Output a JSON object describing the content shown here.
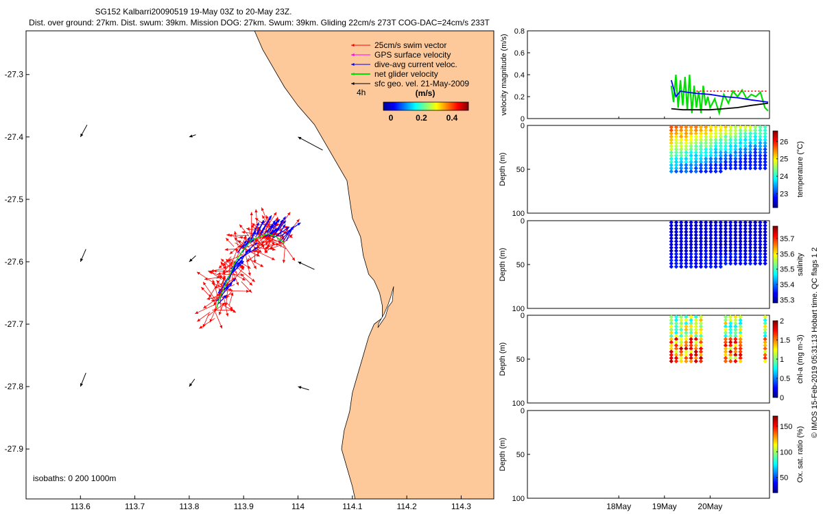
{
  "header": {
    "title_line1": "SG152 Kalbarri20090519 19-May 03Z to 20-May 23Z.",
    "title_line2": "Dist. over ground: 27km. Dist. swum: 39km. Mission DOG: 27km. Swum: 39km. Gliding 22cm/s 273T COG-DAC=24cm/s 233T"
  },
  "map": {
    "legend": [
      {
        "label": "25cm/s swim vector",
        "color": "#ff0000"
      },
      {
        "label": "GPS surface velocity",
        "color": "#ff00ff"
      },
      {
        "label": "dive-avg current veloc.",
        "color": "#0000ff"
      },
      {
        "label": "net glider velocity",
        "color": "#00e000"
      },
      {
        "label": "sfc geo. vel. 21-May-2009",
        "color": "#000000"
      }
    ],
    "legend_4h": "4h",
    "colorbar_title": "(m/s)",
    "colorbar_ticks": [
      "0",
      "0.2",
      "0.4"
    ],
    "isobaths_label": "isobaths: 0   200  1000m",
    "land_color": "#fdc99a"
  },
  "side_note": "© IMOS 15-Feb-2019 05:31:13 Hobart time. QC flags 1  2",
  "chart_data": [
    {
      "type": "scatter",
      "name": "track-map",
      "xlim": [
        113.5,
        114.36
      ],
      "ylim": [
        -27.98,
        -27.23
      ],
      "xticks": [
        "113.6",
        "113.7",
        "113.8",
        "113.9",
        "114",
        "114.1",
        "114.2",
        "114.3"
      ],
      "xtick_values": [
        113.6,
        113.7,
        113.8,
        113.9,
        114.0,
        114.1,
        114.2,
        114.3
      ],
      "yticks": [
        "-27.3",
        "-27.4",
        "-27.5",
        "-27.6",
        "-27.7",
        "-27.8",
        "-27.9"
      ],
      "ytick_values": [
        -27.3,
        -27.4,
        -27.5,
        -27.6,
        -27.7,
        -27.8,
        -27.9
      ],
      "coastline": [
        [
          113.92,
          -27.23
        ],
        [
          113.935,
          -27.26
        ],
        [
          113.955,
          -27.29
        ],
        [
          113.975,
          -27.32
        ],
        [
          114.0,
          -27.35
        ],
        [
          114.03,
          -27.38
        ],
        [
          114.05,
          -27.41
        ],
        [
          114.07,
          -27.44
        ],
        [
          114.09,
          -27.47
        ],
        [
          114.095,
          -27.5
        ],
        [
          114.1,
          -27.53
        ],
        [
          114.115,
          -27.56
        ],
        [
          114.12,
          -27.59
        ],
        [
          114.13,
          -27.62
        ],
        [
          114.14,
          -27.63
        ],
        [
          114.15,
          -27.65
        ],
        [
          114.155,
          -27.67
        ],
        [
          114.155,
          -27.69
        ],
        [
          114.14,
          -27.7
        ],
        [
          114.13,
          -27.72
        ],
        [
          114.12,
          -27.75
        ],
        [
          114.11,
          -27.78
        ],
        [
          114.1,
          -27.81
        ],
        [
          114.095,
          -27.84
        ],
        [
          114.085,
          -27.87
        ],
        [
          114.08,
          -27.9
        ],
        [
          114.09,
          -27.93
        ],
        [
          114.1,
          -27.96
        ],
        [
          114.105,
          -27.98
        ]
      ],
      "geo_vectors": [
        {
          "lon": 113.6,
          "lat": -27.4,
          "u": -0.012,
          "v": -0.022
        },
        {
          "lon": 113.8,
          "lat": -27.4,
          "u": -0.012,
          "v": -0.004
        },
        {
          "lon": 114.0,
          "lat": -27.4,
          "u": -0.045,
          "v": 0.024
        },
        {
          "lon": 113.6,
          "lat": -27.6,
          "u": -0.01,
          "v": -0.023
        },
        {
          "lon": 113.8,
          "lat": -27.6,
          "u": -0.012,
          "v": -0.011
        },
        {
          "lon": 114.0,
          "lat": -27.6,
          "u": -0.03,
          "v": 0.014
        },
        {
          "lon": 113.6,
          "lat": -27.8,
          "u": -0.01,
          "v": -0.025
        },
        {
          "lon": 113.8,
          "lat": -27.8,
          "u": -0.01,
          "v": -0.014
        },
        {
          "lon": 114.0,
          "lat": -27.8,
          "u": -0.02,
          "v": 0.006
        }
      ],
      "track": [
        [
          113.975,
          -27.57
        ],
        [
          113.96,
          -27.56
        ],
        [
          113.945,
          -27.555
        ],
        [
          113.93,
          -27.56
        ],
        [
          113.915,
          -27.565
        ],
        [
          113.9,
          -27.58
        ],
        [
          113.885,
          -27.6
        ],
        [
          113.875,
          -27.62
        ],
        [
          113.865,
          -27.64
        ],
        [
          113.855,
          -27.66
        ],
        [
          113.85,
          -27.675
        ]
      ],
      "legend": [
        "25cm/s swim vector",
        "GPS surface velocity",
        "dive-avg current veloc.",
        "net glider velocity",
        "sfc geo. vel. 21-May-2009"
      ]
    },
    {
      "type": "line",
      "name": "velocity-magnitude",
      "ylabel": "velocity magnitude (m/s)",
      "ylim": [
        0,
        0.8
      ],
      "yticks": [
        "0",
        "0.2",
        "0.4",
        "0.6",
        "0.8"
      ],
      "ytick_values": [
        0,
        0.2,
        0.4,
        0.6,
        0.8
      ],
      "xlim": [
        16.0,
        21.3
      ],
      "series": [
        {
          "name": "net glider velocity",
          "color": "#00e000",
          "x": [
            19.15,
            19.2,
            19.25,
            19.3,
            19.35,
            19.4,
            19.45,
            19.5,
            19.55,
            19.6,
            19.65,
            19.7,
            19.75,
            19.8,
            19.85,
            19.9,
            19.95,
            20.0,
            20.1,
            20.2,
            20.3,
            20.4,
            20.5,
            20.6,
            20.7,
            20.8,
            20.9,
            21.0,
            21.1,
            21.2,
            21.27
          ],
          "values": [
            0.3,
            0.15,
            0.4,
            0.1,
            0.35,
            0.12,
            0.38,
            0.08,
            0.4,
            0.05,
            0.3,
            0.1,
            0.25,
            0.05,
            0.3,
            0.12,
            0.2,
            0.1,
            0.18,
            0.05,
            0.22,
            0.14,
            0.25,
            0.2,
            0.26,
            0.18,
            0.22,
            0.2,
            0.24,
            0.1,
            0.07
          ]
        },
        {
          "name": "dive-avg current",
          "color": "#0000ff",
          "x": [
            19.15,
            19.25,
            19.35,
            19.5,
            19.7,
            20.0,
            20.3,
            20.6,
            20.9,
            21.27
          ],
          "values": [
            0.35,
            0.2,
            0.25,
            0.24,
            0.23,
            0.22,
            0.2,
            0.19,
            0.17,
            0.15
          ]
        },
        {
          "name": "sfc geo. vel.",
          "color": "#000000",
          "x": [
            19.15,
            19.4,
            19.7,
            20.0,
            20.3,
            20.6,
            20.9,
            21.27
          ],
          "values": [
            0.09,
            0.08,
            0.08,
            0.08,
            0.09,
            0.1,
            0.12,
            0.14
          ]
        },
        {
          "name": "GPS surface velocity",
          "color": "#ff0000",
          "style": "dotted",
          "x": [
            19.7,
            19.9,
            20.2,
            20.5,
            20.8,
            21.27
          ],
          "values": [
            0.25,
            0.25,
            0.25,
            0.25,
            0.25,
            0.25
          ]
        }
      ]
    },
    {
      "type": "scatter",
      "name": "temperature-section",
      "ylabel": "Depth (m)",
      "ylim": [
        0,
        100
      ],
      "yticks": [
        "0",
        "50",
        "100"
      ],
      "ytick_values": [
        0,
        50,
        100
      ],
      "xlim": [
        16.0,
        21.3
      ],
      "x_start": 19.15,
      "x_end": 21.27,
      "max_depth": 55,
      "colorbar_label": "temperature (°C)",
      "colorbar_ticks": [
        "23",
        "24",
        "25",
        "26"
      ],
      "colorbar_values": [
        23,
        24,
        25,
        26
      ],
      "clim": [
        22.2,
        26.6
      ],
      "gaps": []
    },
    {
      "type": "scatter",
      "name": "salinity-section",
      "ylabel": "Depth (m)",
      "ylim": [
        0,
        100
      ],
      "yticks": [
        "0",
        "50",
        "100"
      ],
      "ytick_values": [
        0,
        50,
        100
      ],
      "xlim": [
        16.0,
        21.3
      ],
      "x_start": 19.15,
      "x_end": 21.27,
      "max_depth": 55,
      "colorbar_label": "salinity",
      "colorbar_ticks": [
        "35.3",
        "35.4",
        "35.5",
        "35.6",
        "35.7"
      ],
      "colorbar_values": [
        35.3,
        35.4,
        35.5,
        35.6,
        35.7
      ],
      "clim": [
        35.28,
        35.78
      ],
      "gaps": []
    },
    {
      "type": "scatter",
      "name": "chlorophyll-section",
      "ylabel": "Depth (m)",
      "ylim": [
        0,
        100
      ],
      "yticks": [
        "0",
        "50",
        "100"
      ],
      "ytick_values": [
        0,
        50,
        100
      ],
      "xlim": [
        16.0,
        21.3
      ],
      "x_start": 19.15,
      "x_end": 21.27,
      "max_depth": 55,
      "colorbar_label": "chl-a (mg m-3)",
      "colorbar_ticks": [
        "0",
        "0.5",
        "1",
        "1.5",
        "2"
      ],
      "colorbar_values": [
        0,
        0.5,
        1,
        1.5,
        2
      ],
      "clim": [
        0,
        2
      ],
      "gaps": [
        [
          19.85,
          20.32
        ],
        [
          20.75,
          21.12
        ]
      ]
    },
    {
      "type": "scatter",
      "name": "oxygen-section",
      "ylabel": "Depth (m)",
      "ylim": [
        0,
        100
      ],
      "yticks": [
        "0",
        "50",
        "100"
      ],
      "ytick_values": [
        0,
        50,
        100
      ],
      "xlim": [
        16.0,
        21.3
      ],
      "xticks": [
        "18May",
        "19May",
        "20May"
      ],
      "xtick_values": [
        18,
        19,
        20
      ],
      "colorbar_label": "Ox. sat. ratio (%)",
      "colorbar_ticks": [
        "50",
        "100",
        "150"
      ],
      "colorbar_values": [
        50,
        100,
        150
      ],
      "clim": [
        20,
        170
      ],
      "gaps": []
    }
  ]
}
